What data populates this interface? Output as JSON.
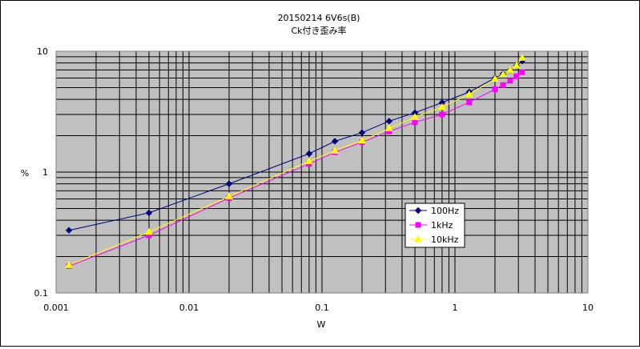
{
  "chart_data": {
    "type": "line",
    "title": "20150214 6V6s(B)",
    "subtitle": "Ck付き歪み率",
    "xlabel": "W",
    "ylabel": "%",
    "x_scale": "log",
    "y_scale": "log",
    "xlim": [
      0.001,
      10
    ],
    "ylim": [
      0.1,
      10
    ],
    "x_ticks": [
      {
        "value": 0.001,
        "label": "0.001"
      },
      {
        "value": 0.01,
        "label": "0.01"
      },
      {
        "value": 0.1,
        "label": "0.1"
      },
      {
        "value": 1,
        "label": "1"
      },
      {
        "value": 10,
        "label": "10"
      }
    ],
    "y_ticks": [
      {
        "value": 0.1,
        "label": "0.1"
      },
      {
        "value": 1,
        "label": "1"
      },
      {
        "value": 10,
        "label": "10"
      }
    ],
    "grid": "major and minor",
    "legend_position": "lower-right inside plot",
    "series": [
      {
        "name": "100Hz",
        "color": "#000080",
        "marker": "diamond",
        "points": [
          [
            0.00125,
            0.33
          ],
          [
            0.005,
            0.46
          ],
          [
            0.02,
            0.8
          ],
          [
            0.08,
            1.42
          ],
          [
            0.125,
            1.8
          ],
          [
            0.2,
            2.12
          ],
          [
            0.32,
            2.64
          ],
          [
            0.5,
            3.1
          ],
          [
            0.8,
            3.76
          ],
          [
            1.28,
            4.6
          ],
          [
            2.0,
            6.0
          ],
          [
            2.3,
            6.5
          ],
          [
            2.6,
            7.0
          ],
          [
            2.9,
            7.6
          ],
          [
            3.2,
            8.3
          ]
        ]
      },
      {
        "name": "1kHz",
        "color": "#FF00FF",
        "marker": "square",
        "points": [
          [
            0.00125,
            0.167
          ],
          [
            0.005,
            0.3
          ],
          [
            0.02,
            0.61
          ],
          [
            0.08,
            1.17
          ],
          [
            0.125,
            1.46
          ],
          [
            0.2,
            1.77
          ],
          [
            0.32,
            2.17
          ],
          [
            0.5,
            2.58
          ],
          [
            0.8,
            3.0
          ],
          [
            1.28,
            3.78
          ],
          [
            2.0,
            4.85
          ],
          [
            2.3,
            5.25
          ],
          [
            2.6,
            5.7
          ],
          [
            2.9,
            6.2
          ],
          [
            3.2,
            6.7
          ]
        ]
      },
      {
        "name": "10kHz",
        "color": "#FFFF00",
        "marker": "triangle",
        "points": [
          [
            0.00125,
            0.17
          ],
          [
            0.005,
            0.32
          ],
          [
            0.02,
            0.63
          ],
          [
            0.08,
            1.23
          ],
          [
            0.125,
            1.5
          ],
          [
            0.2,
            1.82
          ],
          [
            0.32,
            2.3
          ],
          [
            0.5,
            2.85
          ],
          [
            0.8,
            3.45
          ],
          [
            1.28,
            4.4
          ],
          [
            2.0,
            5.9
          ],
          [
            2.3,
            6.4
          ],
          [
            2.6,
            7.0
          ],
          [
            2.9,
            7.6
          ],
          [
            3.2,
            8.8
          ]
        ]
      }
    ]
  }
}
